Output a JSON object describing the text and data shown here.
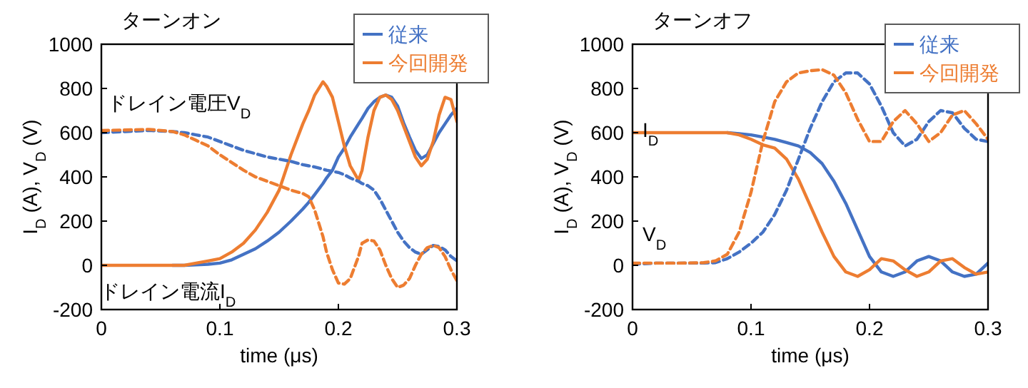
{
  "chart_data": [
    {
      "type": "line",
      "title": "ターンオン",
      "xlabel": "time (μs)",
      "ylabel": "I$_{D}$ (A), V$_{D}$ (V)",
      "xlim": [
        0,
        0.3
      ],
      "ylim": [
        -200,
        1000
      ],
      "xticks": [
        0,
        0.1,
        0.2,
        0.3
      ],
      "yticks": [
        -200,
        0,
        200,
        400,
        600,
        800,
        1000
      ],
      "legend": "top right",
      "grid": false,
      "x": [
        0,
        0.02,
        0.04,
        0.06,
        0.07,
        0.08,
        0.09,
        0.1,
        0.11,
        0.12,
        0.13,
        0.14,
        0.15,
        0.16,
        0.17,
        0.175,
        0.18,
        0.187,
        0.19,
        0.195,
        0.2,
        0.205,
        0.21,
        0.217,
        0.22,
        0.225,
        0.23,
        0.235,
        0.24,
        0.245,
        0.25,
        0.255,
        0.26,
        0.265,
        0.27,
        0.275,
        0.28,
        0.285,
        0.29,
        0.295,
        0.3
      ],
      "annotations": [
        "ドレイン電圧V$_{D}$",
        "ドレイン電流I$_{D}$"
      ],
      "series": [
        {
          "name": "従来",
          "color": "#4472c4",
          "line_style": "solid",
          "values": [
            null,
            null,
            null,
            0,
            0,
            2,
            5,
            10,
            25,
            50,
            75,
            110,
            150,
            200,
            255,
            285,
            320,
            370,
            395,
            430,
            490,
            530,
            580,
            640,
            665,
            710,
            740,
            760,
            770,
            760,
            720,
            645,
            580,
            520,
            483,
            500,
            550,
            600,
            640,
            680,
            710
          ]
        },
        {
          "name": "今回開発",
          "color": "#ed7d31",
          "line_style": "solid",
          "values": [
            0,
            0,
            0,
            0,
            0,
            10,
            20,
            30,
            60,
            100,
            160,
            240,
            340,
            500,
            640,
            700,
            770,
            830,
            810,
            760,
            650,
            540,
            450,
            385,
            430,
            580,
            700,
            760,
            770,
            750,
            700,
            630,
            560,
            490,
            450,
            480,
            560,
            680,
            760,
            750,
            650
          ]
        },
        {
          "color": "#4472c4",
          "line_style": "dashed",
          "values": [
            600,
            605,
            610,
            605,
            600,
            590,
            580,
            560,
            540,
            520,
            505,
            490,
            480,
            470,
            455,
            450,
            445,
            435,
            430,
            425,
            420,
            410,
            395,
            380,
            370,
            360,
            340,
            300,
            250,
            200,
            150,
            110,
            80,
            60,
            50,
            70,
            90,
            85,
            70,
            40,
            20
          ]
        },
        {
          "color": "#ed7d31",
          "line_style": "dashed",
          "values": [
            610,
            612,
            615,
            605,
            590,
            565,
            540,
            500,
            465,
            430,
            400,
            380,
            360,
            340,
            325,
            310,
            250,
            130,
            60,
            -20,
            -80,
            -85,
            -60,
            40,
            100,
            115,
            110,
            70,
            0,
            -60,
            -100,
            -90,
            -60,
            0,
            50,
            80,
            90,
            80,
            40,
            -20,
            -70
          ]
        }
      ]
    },
    {
      "type": "line",
      "title": "ターンオフ",
      "xlabel": "time (μs)",
      "ylabel": "I$_{D}$ (A), V$_{D}$ (V)",
      "xlim": [
        0,
        0.3
      ],
      "ylim": [
        -200,
        1000
      ],
      "xticks": [
        0,
        0.1,
        0.2,
        0.3
      ],
      "yticks": [
        -200,
        0,
        200,
        400,
        600,
        800,
        1000
      ],
      "legend": "top right",
      "grid": false,
      "x": [
        0,
        0.02,
        0.04,
        0.06,
        0.07,
        0.08,
        0.09,
        0.1,
        0.11,
        0.12,
        0.13,
        0.14,
        0.15,
        0.16,
        0.17,
        0.18,
        0.19,
        0.2,
        0.21,
        0.22,
        0.23,
        0.24,
        0.25,
        0.26,
        0.27,
        0.28,
        0.29,
        0.3
      ],
      "annotations": [
        "I$_{D}$",
        "V$_{D}$"
      ],
      "series": [
        {
          "name": "従来",
          "color": "#4472c4",
          "line_style": "solid",
          "values": [
            null,
            null,
            null,
            null,
            null,
            600,
            595,
            590,
            580,
            570,
            555,
            540,
            510,
            460,
            380,
            280,
            160,
            40,
            -30,
            -50,
            -30,
            20,
            40,
            20,
            -30,
            -50,
            -40,
            10
          ]
        },
        {
          "name": "今回開発",
          "color": "#ed7d31",
          "line_style": "solid",
          "values": [
            600,
            600,
            600,
            600,
            600,
            600,
            590,
            570,
            545,
            530,
            480,
            390,
            270,
            150,
            40,
            -30,
            -50,
            -20,
            30,
            20,
            -20,
            -50,
            -30,
            20,
            30,
            -10,
            -40,
            -30
          ]
        },
        {
          "color": "#4472c4",
          "line_style": "dashed",
          "values": [
            5,
            10,
            10,
            10,
            12,
            30,
            60,
            100,
            150,
            230,
            340,
            480,
            620,
            740,
            830,
            870,
            870,
            820,
            720,
            600,
            540,
            570,
            650,
            700,
            690,
            620,
            570,
            560
          ]
        },
        {
          "color": "#ed7d31",
          "line_style": "dashed",
          "values": [
            10,
            10,
            10,
            12,
            20,
            50,
            150,
            330,
            560,
            740,
            830,
            870,
            880,
            885,
            860,
            780,
            660,
            560,
            560,
            650,
            700,
            640,
            560,
            600,
            680,
            700,
            640,
            570
          ]
        }
      ]
    }
  ]
}
